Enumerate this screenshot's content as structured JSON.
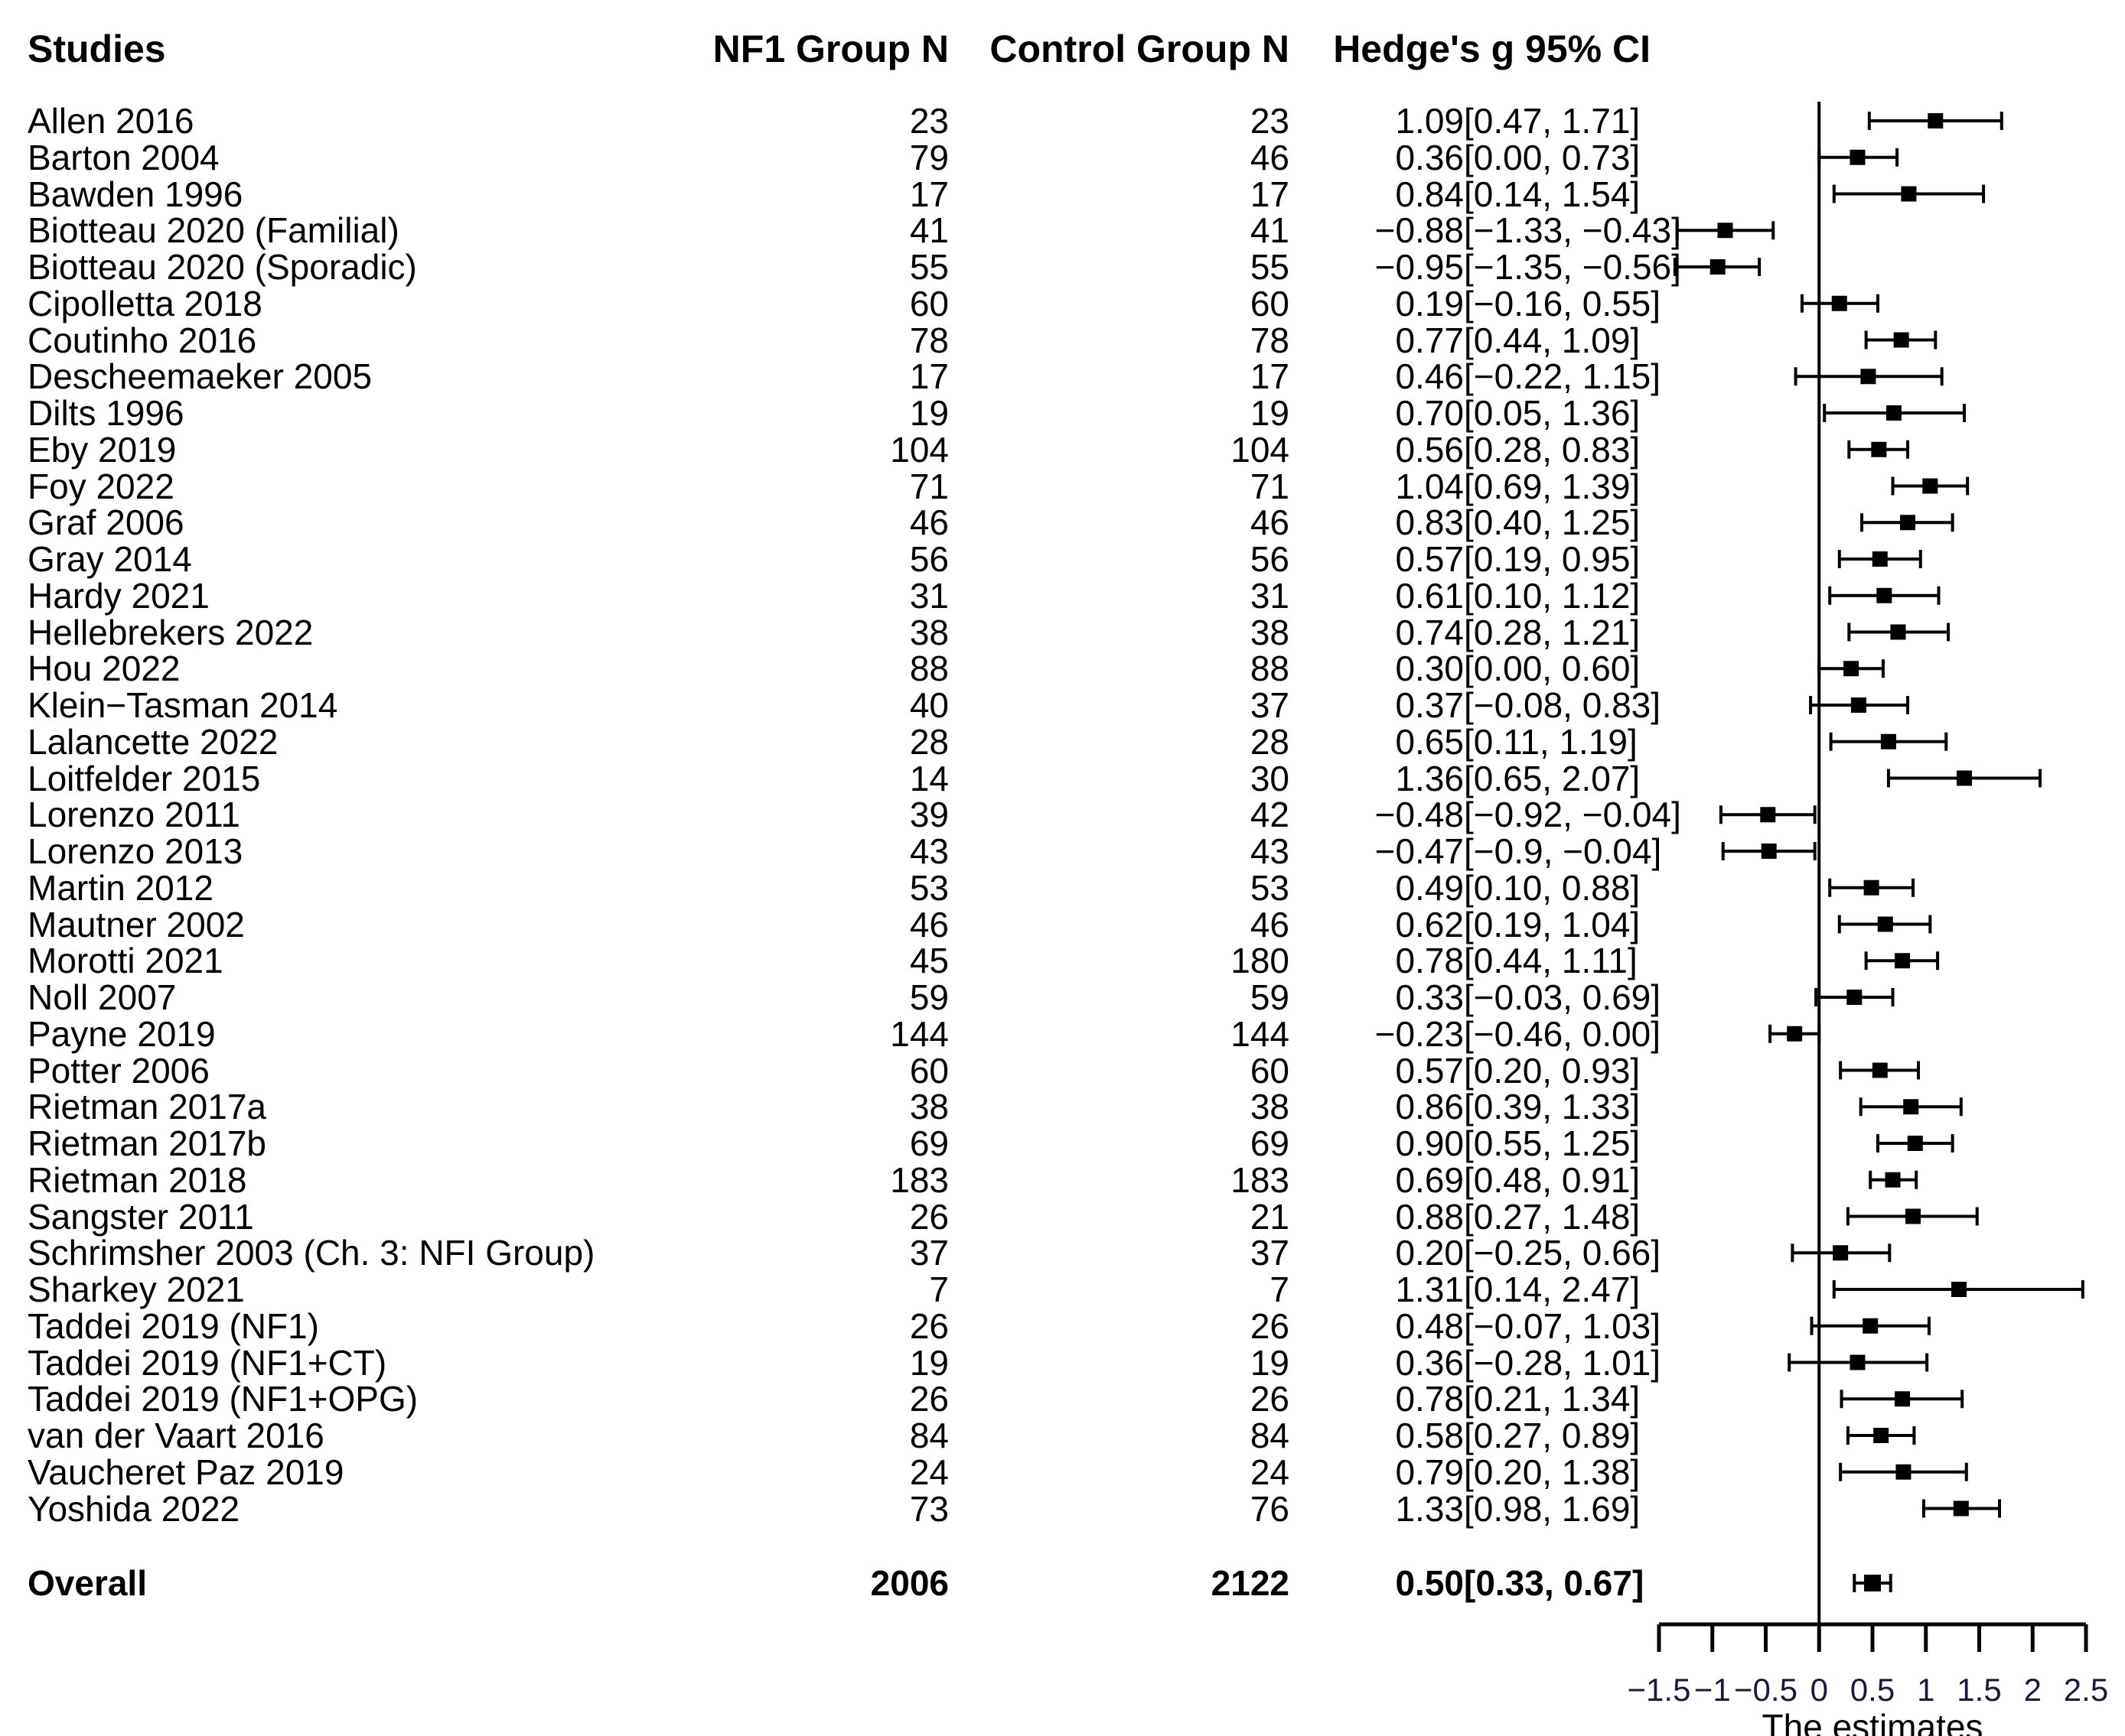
{
  "chart_data": {
    "type": "forest",
    "headers": {
      "study": "Studies",
      "nf1": "NF1 Group N",
      "control": "Control Group N",
      "estimate": "Hedge's g 95% CI"
    },
    "xlabel": "The estimates",
    "xlim": [
      -1.5,
      2.5
    ],
    "xticks": [
      -1.5,
      -1,
      -0.5,
      0,
      0.5,
      1,
      1.5,
      2,
      2.5
    ],
    "xtick_labels": [
      "−1.5",
      "−1",
      "−0.5",
      "0",
      "0.5",
      "1",
      "1.5",
      "2",
      "2.5"
    ],
    "studies": [
      {
        "name": "Allen 2016",
        "nf1": "23",
        "control": "23",
        "g": 1.09,
        "lo": 0.47,
        "hi": 1.71,
        "est": "1.09",
        "ci": "[0.47, 1.71]"
      },
      {
        "name": "Barton 2004",
        "nf1": "79",
        "control": "46",
        "g": 0.36,
        "lo": 0.0,
        "hi": 0.73,
        "est": "0.36",
        "ci": "[0.00, 0.73]"
      },
      {
        "name": "Bawden 1996",
        "nf1": "17",
        "control": "17",
        "g": 0.84,
        "lo": 0.14,
        "hi": 1.54,
        "est": "0.84",
        "ci": "[0.14, 1.54]"
      },
      {
        "name": "Biotteau 2020 (Familial)",
        "nf1": "41",
        "control": "41",
        "g": -0.88,
        "lo": -1.33,
        "hi": -0.43,
        "est": "−0.88",
        "ci": "[−1.33, −0.43]"
      },
      {
        "name": "Biotteau 2020 (Sporadic)",
        "nf1": "55",
        "control": "55",
        "g": -0.95,
        "lo": -1.35,
        "hi": -0.56,
        "est": "−0.95",
        "ci": "[−1.35, −0.56]"
      },
      {
        "name": "Cipolletta 2018",
        "nf1": "60",
        "control": "60",
        "g": 0.19,
        "lo": -0.16,
        "hi": 0.55,
        "est": "0.19",
        "ci": "[−0.16, 0.55]"
      },
      {
        "name": "Coutinho 2016",
        "nf1": "78",
        "control": "78",
        "g": 0.77,
        "lo": 0.44,
        "hi": 1.09,
        "est": "0.77",
        "ci": "[0.44, 1.09]"
      },
      {
        "name": "Descheemaeker 2005",
        "nf1": "17",
        "control": "17",
        "g": 0.46,
        "lo": -0.22,
        "hi": 1.15,
        "est": "0.46",
        "ci": "[−0.22, 1.15]"
      },
      {
        "name": "Dilts 1996",
        "nf1": "19",
        "control": "19",
        "g": 0.7,
        "lo": 0.05,
        "hi": 1.36,
        "est": "0.70",
        "ci": "[0.05, 1.36]"
      },
      {
        "name": "Eby 2019",
        "nf1": "104",
        "control": "104",
        "g": 0.56,
        "lo": 0.28,
        "hi": 0.83,
        "est": "0.56",
        "ci": "[0.28, 0.83]"
      },
      {
        "name": "Foy 2022",
        "nf1": "71",
        "control": "71",
        "g": 1.04,
        "lo": 0.69,
        "hi": 1.39,
        "est": "1.04",
        "ci": "[0.69, 1.39]"
      },
      {
        "name": "Graf 2006",
        "nf1": "46",
        "control": "46",
        "g": 0.83,
        "lo": 0.4,
        "hi": 1.25,
        "est": "0.83",
        "ci": "[0.40, 1.25]"
      },
      {
        "name": "Gray 2014",
        "nf1": "56",
        "control": "56",
        "g": 0.57,
        "lo": 0.19,
        "hi": 0.95,
        "est": "0.57",
        "ci": "[0.19, 0.95]"
      },
      {
        "name": "Hardy 2021",
        "nf1": "31",
        "control": "31",
        "g": 0.61,
        "lo": 0.1,
        "hi": 1.12,
        "est": "0.61",
        "ci": "[0.10, 1.12]"
      },
      {
        "name": "Hellebrekers 2022",
        "nf1": "38",
        "control": "38",
        "g": 0.74,
        "lo": 0.28,
        "hi": 1.21,
        "est": "0.74",
        "ci": "[0.28, 1.21]"
      },
      {
        "name": "Hou 2022",
        "nf1": "88",
        "control": "88",
        "g": 0.3,
        "lo": 0.0,
        "hi": 0.6,
        "est": "0.30",
        "ci": "[0.00, 0.60]"
      },
      {
        "name": "Klein−Tasman 2014",
        "nf1": "40",
        "control": "37",
        "g": 0.37,
        "lo": -0.08,
        "hi": 0.83,
        "est": "0.37",
        "ci": "[−0.08, 0.83]"
      },
      {
        "name": "Lalancette 2022",
        "nf1": "28",
        "control": "28",
        "g": 0.65,
        "lo": 0.11,
        "hi": 1.19,
        "est": "0.65",
        "ci": "[0.11, 1.19]"
      },
      {
        "name": "Loitfelder 2015",
        "nf1": "14",
        "control": "30",
        "g": 1.36,
        "lo": 0.65,
        "hi": 2.07,
        "est": "1.36",
        "ci": "[0.65, 2.07]"
      },
      {
        "name": "Lorenzo 2011",
        "nf1": "39",
        "control": "42",
        "g": -0.48,
        "lo": -0.92,
        "hi": -0.04,
        "est": "−0.48",
        "ci": "[−0.92, −0.04]"
      },
      {
        "name": "Lorenzo 2013",
        "nf1": "43",
        "control": "43",
        "g": -0.47,
        "lo": -0.9,
        "hi": -0.04,
        "est": "−0.47",
        "ci": "[−0.9, −0.04]"
      },
      {
        "name": "Martin 2012",
        "nf1": "53",
        "control": "53",
        "g": 0.49,
        "lo": 0.1,
        "hi": 0.88,
        "est": "0.49",
        "ci": "[0.10, 0.88]"
      },
      {
        "name": "Mautner 2002",
        "nf1": "46",
        "control": "46",
        "g": 0.62,
        "lo": 0.19,
        "hi": 1.04,
        "est": "0.62",
        "ci": "[0.19, 1.04]"
      },
      {
        "name": "Morotti 2021",
        "nf1": "45",
        "control": "180",
        "g": 0.78,
        "lo": 0.44,
        "hi": 1.11,
        "est": "0.78",
        "ci": "[0.44, 1.11]"
      },
      {
        "name": "Noll 2007",
        "nf1": "59",
        "control": "59",
        "g": 0.33,
        "lo": -0.03,
        "hi": 0.69,
        "est": "0.33",
        "ci": "[−0.03, 0.69]"
      },
      {
        "name": "Payne 2019",
        "nf1": "144",
        "control": "144",
        "g": -0.23,
        "lo": -0.46,
        "hi": 0.0,
        "est": "−0.23",
        "ci": "[−0.46, 0.00]"
      },
      {
        "name": "Potter 2006",
        "nf1": "60",
        "control": "60",
        "g": 0.57,
        "lo": 0.2,
        "hi": 0.93,
        "est": "0.57",
        "ci": "[0.20, 0.93]"
      },
      {
        "name": "Rietman 2017a",
        "nf1": "38",
        "control": "38",
        "g": 0.86,
        "lo": 0.39,
        "hi": 1.33,
        "est": "0.86",
        "ci": "[0.39, 1.33]"
      },
      {
        "name": "Rietman 2017b",
        "nf1": "69",
        "control": "69",
        "g": 0.9,
        "lo": 0.55,
        "hi": 1.25,
        "est": "0.90",
        "ci": "[0.55, 1.25]"
      },
      {
        "name": "Rietman 2018",
        "nf1": "183",
        "control": "183",
        "g": 0.69,
        "lo": 0.48,
        "hi": 0.91,
        "est": "0.69",
        "ci": "[0.48, 0.91]"
      },
      {
        "name": "Sangster 2011",
        "nf1": "26",
        "control": "21",
        "g": 0.88,
        "lo": 0.27,
        "hi": 1.48,
        "est": "0.88",
        "ci": "[0.27, 1.48]"
      },
      {
        "name": "Schrimsher 2003 (Ch. 3: NFI Group)",
        "nf1": "37",
        "control": "37",
        "g": 0.2,
        "lo": -0.25,
        "hi": 0.66,
        "est": "0.20",
        "ci": "[−0.25, 0.66]"
      },
      {
        "name": "Sharkey 2021",
        "nf1": "7",
        "control": "7",
        "g": 1.31,
        "lo": 0.14,
        "hi": 2.47,
        "est": "1.31",
        "ci": "[0.14, 2.47]"
      },
      {
        "name": "Taddei 2019 (NF1)",
        "nf1": "26",
        "control": "26",
        "g": 0.48,
        "lo": -0.07,
        "hi": 1.03,
        "est": "0.48",
        "ci": "[−0.07, 1.03]"
      },
      {
        "name": "Taddei 2019 (NF1+CT)",
        "nf1": "19",
        "control": "19",
        "g": 0.36,
        "lo": -0.28,
        "hi": 1.01,
        "est": "0.36",
        "ci": "[−0.28, 1.01]"
      },
      {
        "name": "Taddei 2019 (NF1+OPG)",
        "nf1": "26",
        "control": "26",
        "g": 0.78,
        "lo": 0.21,
        "hi": 1.34,
        "est": "0.78",
        "ci": "[0.21, 1.34]"
      },
      {
        "name": "van der Vaart 2016",
        "nf1": "84",
        "control": "84",
        "g": 0.58,
        "lo": 0.27,
        "hi": 0.89,
        "est": "0.58",
        "ci": "[0.27, 0.89]"
      },
      {
        "name": "Vaucheret Paz 2019",
        "nf1": "24",
        "control": "24",
        "g": 0.79,
        "lo": 0.2,
        "hi": 1.38,
        "est": "0.79",
        "ci": "[0.20, 1.38]"
      },
      {
        "name": "Yoshida 2022",
        "nf1": "73",
        "control": "76",
        "g": 1.33,
        "lo": 0.98,
        "hi": 1.69,
        "est": "1.33",
        "ci": "[0.98, 1.69]"
      }
    ],
    "overall": {
      "name": "Overall",
      "nf1": "2006",
      "control": "2122",
      "g": 0.5,
      "lo": 0.33,
      "hi": 0.67,
      "est": "0.50",
      "ci": "[0.33, 0.67]"
    }
  }
}
